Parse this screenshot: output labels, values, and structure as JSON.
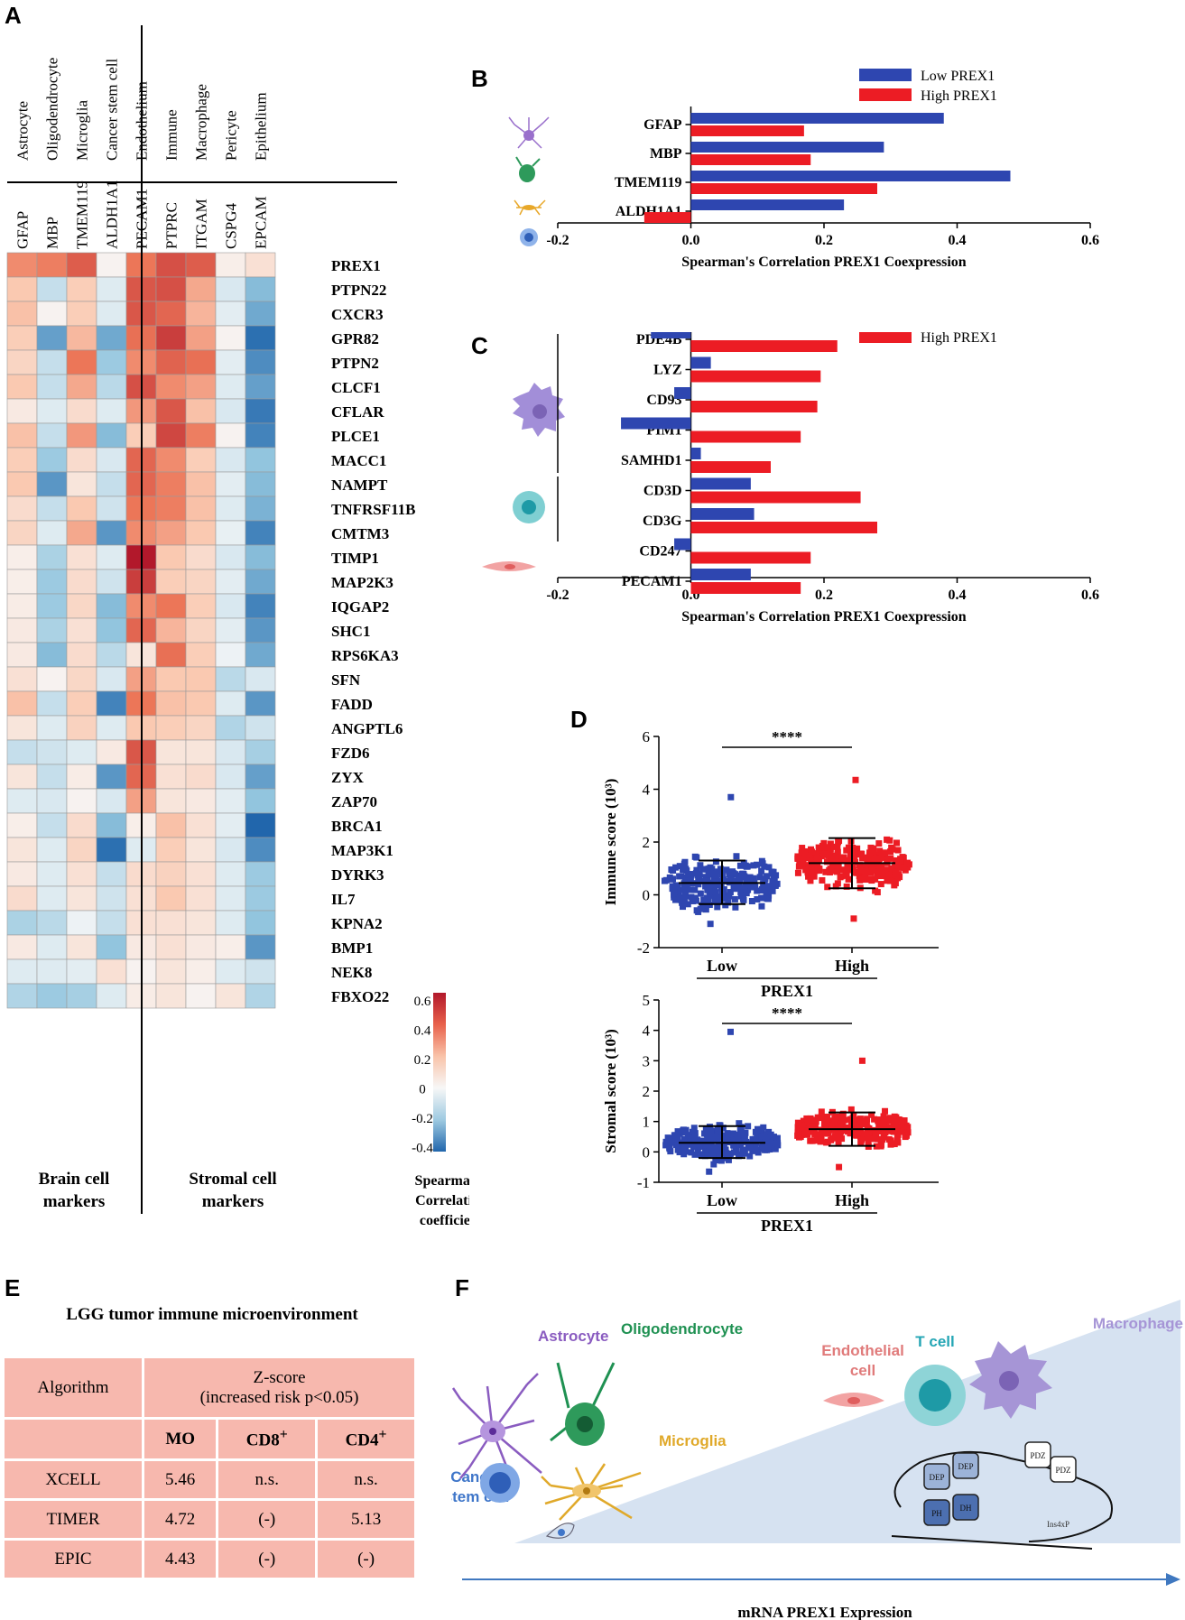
{
  "panels": {
    "a": "A",
    "b": "B",
    "c": "C",
    "d": "D",
    "e": "E",
    "f": "F"
  },
  "heatmap": {
    "cell_types": [
      "Astrocyte",
      "Oligodendrocyte",
      "Microglia",
      "Cancer stem cell",
      "Endothelium",
      "Immune",
      "Macrophage",
      "Pericyte",
      "Epithelium"
    ],
    "markers": [
      "GFAP",
      "MBP",
      "TMEM119",
      "ALDH1A1",
      "PECAM1",
      "PTPRC",
      "ITGAM",
      "CSPG4",
      "EPCAM"
    ],
    "genes": [
      "PREX1",
      "PTPN22",
      "CXCR3",
      "GPR82",
      "PTPN2",
      "CLCF1",
      "CFLAR",
      "PLCE1",
      "MACC1",
      "NAMPT",
      "TNFRSF11B",
      "CMTM3",
      "TIMP1",
      "MAP2K3",
      "IQGAP2",
      "SHC1",
      "RPS6KA3",
      "SFN",
      "FADD",
      "ANGPTL6",
      "FZD6",
      "ZYX",
      "ZAP70",
      "BRCA1",
      "MAP3K1",
      "DYRK3",
      "IL7",
      "KPNA2",
      "BMP1",
      "NEK8",
      "FBXO22"
    ],
    "values": [
      [
        0.35,
        0.38,
        0.48,
        0.02,
        0.4,
        0.52,
        0.48,
        0.04,
        0.1
      ],
      [
        0.2,
        -0.1,
        0.18,
        -0.05,
        0.5,
        0.52,
        0.28,
        -0.06,
        -0.22
      ],
      [
        0.22,
        0.02,
        0.18,
        -0.05,
        0.5,
        0.45,
        0.25,
        -0.04,
        -0.26
      ],
      [
        0.18,
        -0.28,
        0.24,
        -0.26,
        0.42,
        0.58,
        0.3,
        0.02,
        -0.38
      ],
      [
        0.15,
        -0.1,
        0.4,
        -0.18,
        0.35,
        0.46,
        0.42,
        -0.04,
        -0.32
      ],
      [
        0.2,
        -0.1,
        0.28,
        -0.12,
        0.52,
        0.35,
        0.3,
        -0.05,
        -0.28
      ],
      [
        0.06,
        -0.05,
        0.12,
        -0.05,
        0.32,
        0.5,
        0.22,
        -0.06,
        -0.36
      ],
      [
        0.22,
        -0.1,
        0.32,
        -0.22,
        0.18,
        0.55,
        0.38,
        0.02,
        -0.34
      ],
      [
        0.18,
        -0.18,
        0.12,
        -0.06,
        0.45,
        0.35,
        0.18,
        -0.06,
        -0.2
      ],
      [
        0.2,
        -0.3,
        0.08,
        -0.1,
        0.45,
        0.38,
        0.22,
        -0.04,
        -0.22
      ],
      [
        0.12,
        -0.1,
        0.2,
        -0.08,
        0.4,
        0.38,
        0.22,
        -0.05,
        -0.24
      ],
      [
        0.15,
        -0.05,
        0.28,
        -0.3,
        0.35,
        0.3,
        0.2,
        -0.03,
        -0.34
      ],
      [
        0.04,
        -0.15,
        0.1,
        -0.05,
        0.7,
        0.2,
        0.12,
        -0.06,
        -0.22
      ],
      [
        0.04,
        -0.18,
        0.12,
        -0.08,
        0.58,
        0.18,
        0.15,
        -0.04,
        -0.26
      ],
      [
        0.05,
        -0.18,
        0.14,
        -0.22,
        0.35,
        0.4,
        0.18,
        -0.06,
        -0.34
      ],
      [
        0.06,
        -0.15,
        0.1,
        -0.2,
        0.45,
        0.25,
        0.15,
        -0.04,
        -0.3
      ],
      [
        0.06,
        -0.22,
        0.12,
        -0.12,
        0.08,
        0.42,
        0.18,
        -0.02,
        -0.26
      ],
      [
        0.1,
        0.02,
        0.14,
        -0.06,
        0.3,
        0.2,
        0.2,
        -0.12,
        -0.06
      ],
      [
        0.22,
        -0.1,
        0.18,
        -0.34,
        0.4,
        0.22,
        0.2,
        -0.05,
        -0.3
      ],
      [
        0.08,
        -0.05,
        0.16,
        -0.05,
        0.2,
        0.18,
        0.15,
        -0.14,
        -0.08
      ],
      [
        -0.1,
        -0.08,
        -0.05,
        0.06,
        0.5,
        0.08,
        0.08,
        -0.06,
        -0.16
      ],
      [
        0.08,
        -0.1,
        0.05,
        -0.3,
        0.45,
        0.1,
        0.12,
        -0.06,
        -0.28
      ],
      [
        -0.05,
        -0.06,
        0.02,
        -0.06,
        0.3,
        0.08,
        0.06,
        -0.04,
        -0.2
      ],
      [
        0.04,
        -0.1,
        0.12,
        -0.22,
        0.04,
        0.22,
        0.1,
        -0.04,
        -0.4
      ],
      [
        0.08,
        -0.05,
        0.15,
        -0.38,
        -0.05,
        0.18,
        0.08,
        -0.06,
        -0.32
      ],
      [
        0.06,
        -0.05,
        0.1,
        -0.1,
        0.12,
        0.16,
        0.1,
        -0.05,
        -0.18
      ],
      [
        0.12,
        -0.05,
        0.08,
        -0.08,
        0.1,
        0.2,
        0.1,
        -0.05,
        -0.18
      ],
      [
        -0.15,
        -0.12,
        -0.02,
        -0.1,
        0.1,
        0.1,
        0.08,
        -0.05,
        -0.2
      ],
      [
        0.06,
        -0.05,
        0.08,
        -0.2,
        0.06,
        0.1,
        0.06,
        0.04,
        -0.3
      ],
      [
        -0.05,
        -0.05,
        -0.04,
        0.1,
        0.02,
        0.08,
        0.04,
        -0.05,
        -0.08
      ],
      [
        -0.14,
        -0.18,
        -0.16,
        -0.05,
        0.05,
        0.08,
        0.02,
        0.08,
        -0.14
      ]
    ],
    "group_brain": [
      "Brain cell",
      "markers"
    ],
    "group_stromal": [
      "Stromal cell",
      "markers"
    ],
    "colorbar_ticks": [
      "0.6",
      "0.4",
      "0.2",
      "0",
      "-0.2",
      "-0.4"
    ],
    "colorbar_title": [
      "Spearman's",
      "Correlation",
      "coefficient"
    ]
  },
  "chart_data": [
    {
      "type": "bar",
      "id": "B",
      "orientation": "horizontal",
      "categories": [
        "GFAP",
        "MBP",
        "TMEM119",
        "ALDH1A1"
      ],
      "series": [
        {
          "name": "Low PREX1",
          "color": "#2e46b0",
          "values": [
            0.38,
            0.29,
            0.48,
            0.23
          ]
        },
        {
          "name": "High PREX1",
          "color": "#ec1c24",
          "values": [
            0.17,
            0.18,
            0.28,
            -0.07
          ]
        }
      ],
      "xlabel": "Spearman's Correlation PREX1 Coexpression",
      "xlim": [
        -0.2,
        0.6
      ],
      "xticks": [
        "-0.2",
        "0.0",
        "0.2",
        "0.4",
        "0.6"
      ]
    },
    {
      "type": "bar",
      "id": "C",
      "orientation": "horizontal",
      "categories": [
        "PDE4B",
        "LYZ",
        "CD93",
        "PIM1",
        "SAMHD1",
        "CD3D",
        "CD3G",
        "CD247",
        "PECAM1"
      ],
      "series": [
        {
          "name": "Low PREX1",
          "color": "#2e46b0",
          "values": [
            -0.06,
            0.03,
            -0.025,
            -0.105,
            0.015,
            0.09,
            0.095,
            -0.025,
            0.09
          ]
        },
        {
          "name": "High PREX1",
          "color": "#ec1c24",
          "values": [
            0.22,
            0.195,
            0.19,
            0.165,
            0.12,
            0.255,
            0.28,
            0.18,
            0.165
          ]
        }
      ],
      "xlabel": "Spearman's Correlation PREX1 Coexpression",
      "xlim": [
        -0.2,
        0.6
      ],
      "xticks": [
        "-0.2",
        "0.0",
        "0.2",
        "0.4",
        "0.6"
      ]
    },
    {
      "type": "scatter",
      "id": "D-immune",
      "categories": [
        "Low",
        "High"
      ],
      "group_label": "PREX1",
      "ylabel": "Immune score (10³)",
      "ylim": [
        -2,
        6
      ],
      "yticks": [
        "-2",
        "0",
        "2",
        "4",
        "6"
      ],
      "significance": "****",
      "mean": [
        0.45,
        1.2
      ],
      "sd_low": [
        -0.35,
        0.25
      ],
      "sd_high": [
        1.3,
        2.15
      ],
      "range": [
        [
          -1.1,
          3.7
        ],
        [
          -0.9,
          4.35
        ]
      ]
    },
    {
      "type": "scatter",
      "id": "D-stromal",
      "categories": [
        "Low",
        "High"
      ],
      "group_label": "PREX1",
      "ylabel": "Stromal score (10³)",
      "ylim": [
        -1,
        5
      ],
      "yticks": [
        "-1",
        "0",
        "1",
        "2",
        "3",
        "4",
        "5"
      ],
      "significance": "****",
      "mean": [
        0.3,
        0.75
      ],
      "sd_low": [
        -0.2,
        0.2
      ],
      "sd_high": [
        0.85,
        1.3
      ],
      "range": [
        [
          -0.65,
          3.95
        ],
        [
          -0.5,
          3.0
        ]
      ]
    }
  ],
  "table": {
    "title": "LGG tumor immune microenvironment",
    "header_algorithm": "Algorithm",
    "header_z1": "Z-score",
    "header_z2": "(increased risk p<0.05)",
    "cols": [
      "MO",
      "CD8",
      "CD4"
    ],
    "col_sup": "+",
    "rows": [
      {
        "name": "XCELL",
        "mo": "5.46",
        "cd8": "n.s.",
        "cd4": "n.s."
      },
      {
        "name": "TIMER",
        "mo": "4.72",
        "cd8": "(-)",
        "cd4": "5.13"
      },
      {
        "name": "EPIC",
        "mo": "4.43",
        "cd8": "(-)",
        "cd4": "(-)"
      }
    ]
  },
  "schematic": {
    "labels": {
      "astrocyte": "Astrocyte",
      "oligodendrocyte": "Oligodendrocyte",
      "microglia": "Microglia",
      "cancer_stem_1": "Cancer",
      "cancer_stem_2": "stem cell",
      "endothelial_1": "Endothelial",
      "endothelial_2": "cell",
      "tcell": "T cell",
      "macrophage": "Macrophage"
    },
    "domains": [
      "DEP",
      "DEP",
      "PDZ",
      "PDZ",
      "PH",
      "DH"
    ],
    "domain_note": "Ins4xP",
    "axis_label": "mRNA PREX1 Expression",
    "colors": {
      "astrocyte": "#8a5cc0",
      "oligodendrocyte": "#1f9152",
      "microglia": "#e0a92a",
      "cancer": "#3f76c9",
      "endothelial": "#e07b7b",
      "tcell": "#25a6b5",
      "macrophage": "#a695d6",
      "arrow": "#3f78c0",
      "wedge": "#d6e2f1"
    }
  }
}
